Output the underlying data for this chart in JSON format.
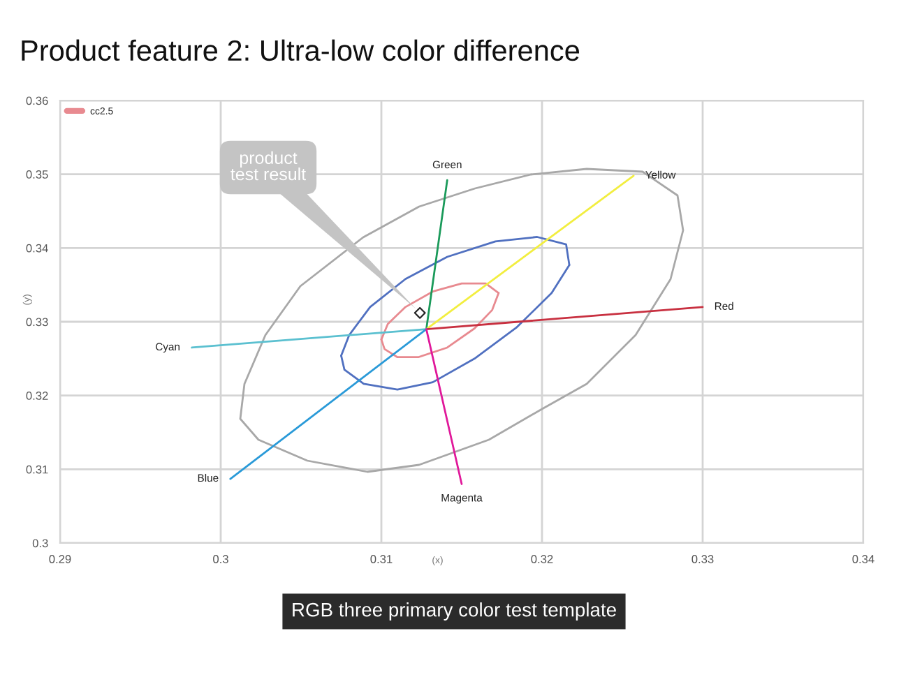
{
  "chart_data": {
    "type": "line",
    "title": "Product feature 2: Ultra-low color difference",
    "xlabel": "(x)",
    "ylabel": "(y)",
    "xlim": [
      0.29,
      0.34
    ],
    "xticks": [
      0.29,
      0.3,
      0.31,
      0.32,
      0.33,
      0.34
    ],
    "ylim": [
      0.3,
      0.36
    ],
    "yticks": [
      0.3,
      0.31,
      0.32,
      0.33,
      0.34,
      0.35,
      0.36
    ],
    "grid": true,
    "legend": "top left",
    "marker": "none",
    "line_style": "solid",
    "series": [
      {
        "name": "cc2.5",
        "color": "#e88a90",
        "x": [
          0.31,
          0.3104,
          0.3115,
          0.3132,
          0.315,
          0.3165,
          0.3173
        ],
        "values": [
          0.3276,
          0.3297,
          0.332,
          0.3341,
          0.3352,
          0.3352,
          0.3339
        ]
      },
      {
        "color": "#e88a90",
        "x": [
          0.31,
          0.3102,
          0.311,
          0.3123,
          0.3141,
          0.3158,
          0.3169,
          0.3173
        ],
        "values": [
          0.3276,
          0.3263,
          0.3252,
          0.3252,
          0.3265,
          0.3291,
          0.3316,
          0.3339
        ]
      },
      {
        "color": "#5070c0",
        "x": [
          0.3075,
          0.308,
          0.3093,
          0.3115,
          0.3141,
          0.3171,
          0.3197,
          0.3215,
          0.3217
        ],
        "values": [
          0.3254,
          0.3282,
          0.332,
          0.3358,
          0.3388,
          0.3409,
          0.3415,
          0.3405,
          0.3377
        ]
      },
      {
        "color": "#5070c0",
        "x": [
          0.3075,
          0.3077,
          0.3089,
          0.311,
          0.3132,
          0.3158,
          0.3184,
          0.3206,
          0.3217
        ],
        "values": [
          0.3254,
          0.3235,
          0.3216,
          0.3208,
          0.3218,
          0.325,
          0.3292,
          0.3339,
          0.3377
        ]
      },
      {
        "name": "Green",
        "color": "#1a9a5a",
        "x": [
          0.3128,
          0.3141
        ],
        "values": [
          0.329,
          0.3492
        ]
      },
      {
        "name": "Yellow",
        "color": "#f2ee40",
        "x": [
          0.3128,
          0.3257
        ],
        "values": [
          0.329,
          0.3498
        ]
      },
      {
        "name": "Red",
        "color": "#c83040",
        "x": [
          0.3128,
          0.33
        ],
        "values": [
          0.329,
          0.332
        ]
      },
      {
        "name": "Cyan",
        "color": "#5bc0d0",
        "x": [
          0.3128,
          0.2982
        ],
        "values": [
          0.329,
          0.3265
        ]
      },
      {
        "name": "Blue",
        "color": "#2a9ad8",
        "x": [
          0.3128,
          0.3006
        ],
        "values": [
          0.329,
          0.3087
        ]
      },
      {
        "name": "Magenta",
        "color": "#e0189a",
        "x": [
          0.3128,
          0.315
        ],
        "values": [
          0.329,
          0.308
        ]
      },
      {
        "type": "scatter",
        "marker": "diamond",
        "color": "#222222",
        "x": [
          0.3124
        ],
        "values": [
          0.3312
        ]
      }
    ],
    "annotations": [
      "product\ntest result",
      "RGB three primary color test template"
    ]
  }
}
